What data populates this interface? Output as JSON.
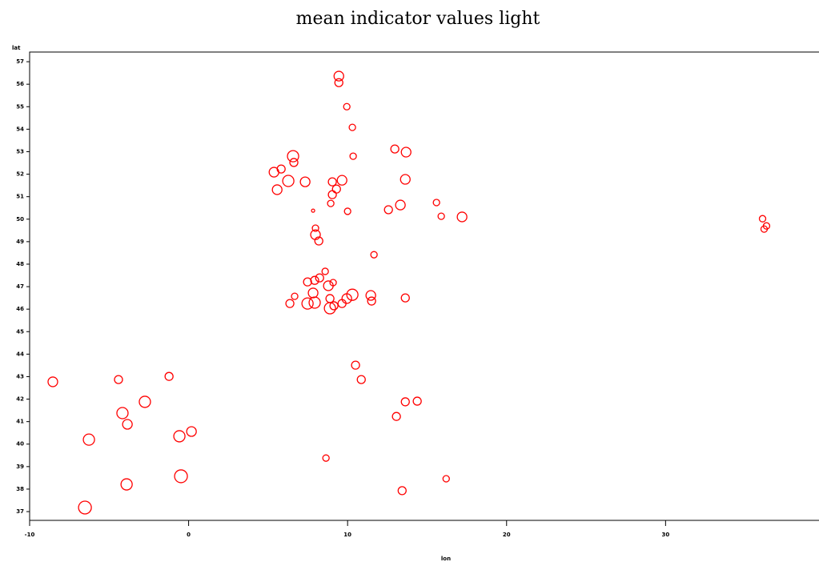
{
  "chart_data": {
    "type": "scatter",
    "title": "mean indicator values light",
    "xlabel": "lon",
    "ylabel": "lat",
    "color": "#ff0000",
    "xlim": [
      -10,
      39.6
    ],
    "ylim": [
      36.61,
      57.43
    ],
    "xticks": [
      -10,
      0,
      10,
      20,
      30,
      40
    ],
    "yticks": [
      37,
      38,
      39,
      40,
      41,
      42,
      43,
      44,
      45,
      46,
      47,
      48,
      49,
      50,
      51,
      52,
      53,
      54,
      55,
      56,
      57
    ],
    "x": [
      9.45,
      9.45,
      9.95,
      10.3,
      10.35,
      12.97,
      13.68,
      6.57,
      6.62,
      5.82,
      5.37,
      6.27,
      7.33,
      9.04,
      9.65,
      9.3,
      5.57,
      13.63,
      9.04,
      8.94,
      13.32,
      15.59,
      12.57,
      10.0,
      7.83,
      15.89,
      17.2,
      36.1,
      36.35,
      36.2,
      7.98,
      7.98,
      8.19,
      11.66,
      8.59,
      8.24,
      7.93,
      7.48,
      9.09,
      8.79,
      7.83,
      6.67,
      10.3,
      11.46,
      9.95,
      13.63,
      11.51,
      6.37,
      8.89,
      7.48,
      7.93,
      9.65,
      9.14,
      8.89,
      10.5,
      10.86,
      -8.54,
      -4.41,
      -1.23,
      -2.75,
      -4.16,
      -3.85,
      13.63,
      14.38,
      13.07,
      -6.27,
      -0.58,
      0.18,
      8.64,
      -0.48,
      16.2,
      -3.9,
      13.43,
      -6.52
    ],
    "y": [
      56.36,
      56.07,
      55.0,
      54.08,
      52.8,
      53.12,
      52.98,
      52.8,
      52.52,
      52.23,
      52.09,
      51.7,
      51.66,
      51.66,
      51.73,
      51.34,
      51.31,
      51.77,
      51.09,
      50.7,
      50.63,
      50.74,
      50.42,
      50.35,
      50.38,
      50.13,
      50.1,
      50.02,
      49.7,
      49.56,
      49.6,
      49.31,
      49.03,
      48.42,
      47.68,
      47.39,
      47.28,
      47.21,
      47.18,
      47.04,
      46.72,
      46.57,
      46.64,
      46.61,
      46.47,
      46.5,
      46.36,
      46.25,
      46.47,
      46.25,
      46.29,
      46.25,
      46.15,
      46.04,
      43.51,
      42.87,
      42.77,
      42.87,
      43.01,
      41.88,
      41.38,
      40.88,
      41.88,
      41.91,
      41.23,
      40.2,
      40.35,
      40.56,
      39.38,
      38.57,
      38.46,
      38.21,
      37.93,
      37.18
    ],
    "sizes": [
      6,
      5,
      4,
      4,
      4,
      5,
      6,
      7,
      5,
      5,
      6,
      7,
      6,
      5,
      6,
      5,
      6,
      6,
      5,
      4,
      6,
      4,
      5,
      4,
      2,
      4,
      6,
      4,
      4,
      4,
      4,
      6,
      5,
      4,
      4,
      5,
      5,
      5,
      4,
      6,
      6,
      4,
      7,
      6,
      6,
      5,
      5,
      5,
      5,
      7,
      7,
      5,
      5,
      7,
      5,
      5,
      6,
      5,
      5,
      7,
      7,
      6,
      5,
      5,
      5,
      7,
      7,
      6,
      4,
      8,
      4,
      7,
      5,
      8
    ]
  }
}
